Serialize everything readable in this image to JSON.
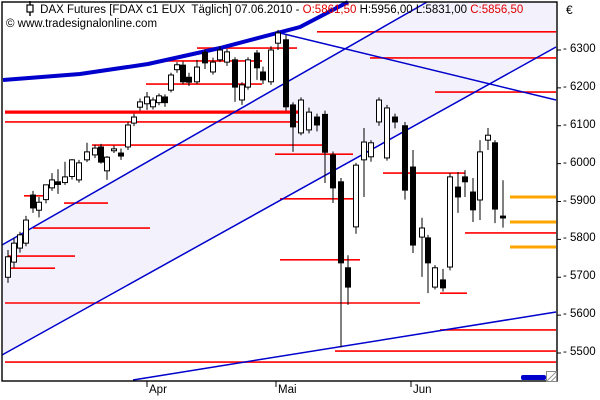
{
  "header": {
    "instrument": "DAX Futures [FDAX c1 EUX  Täglich] 07.06.2010 - ",
    "open_label": "O:5861,50 ",
    "high_label": "H:5956,00 ",
    "low_label": "L:5831,00 ",
    "close_label": "C:5856,50",
    "icon": "candlestick-symbol"
  },
  "watermark": {
    "symbol": "©",
    "text": " www.tradesignalonline.com"
  },
  "axes": {
    "currency_symbol": "€",
    "y_min": 5500,
    "y_max": 6300,
    "y_step": 100,
    "y_ticks": [
      6300,
      6200,
      6100,
      6000,
      5900,
      5800,
      5700,
      5600,
      5500
    ],
    "x_ticks": [
      {
        "label": "Apr",
        "x": 147
      },
      {
        "label": "Mai",
        "x": 276
      },
      {
        "label": "Jun",
        "x": 411
      }
    ]
  },
  "colors": {
    "up_body": "#ffffff",
    "down_body": "#000000",
    "wick": "#000000",
    "level_red": "#ff0000",
    "level_orange": "#ffa500",
    "trend_blue": "#0000cc",
    "channel_fill": "#f3f1fb",
    "ohlc_accent": "#e00000",
    "frame": "#000000",
    "plot_bg": "#ffffff"
  },
  "chart_data": {
    "type": "candlestick",
    "title": "DAX Futures FDAX c1 EUX Daily, 07.06.2010, O 5861.50 H 5956.00 L 5831.00 C 5856.50, prices in EUR",
    "ylim": [
      5500,
      6300
    ],
    "legend": "none",
    "grid": false,
    "candles": [
      [
        8,
        5700,
        5772,
        5685,
        5754
      ],
      [
        14,
        5740,
        5804,
        5725,
        5790
      ],
      [
        20,
        5777,
        5820,
        5765,
        5812
      ],
      [
        26,
        5790,
        5862,
        5782,
        5851
      ],
      [
        33,
        5917,
        5928,
        5870,
        5883
      ],
      [
        39,
        5877,
        5912,
        5858,
        5898
      ],
      [
        46,
        5905,
        5945,
        5895,
        5944
      ],
      [
        52,
        5936,
        5975,
        5928,
        5957
      ],
      [
        58,
        5952,
        5985,
        5920,
        5945
      ],
      [
        65,
        5950,
        6005,
        5944,
        5965
      ],
      [
        72,
        5966,
        6012,
        5958,
        6010
      ],
      [
        79,
        5957,
        6010,
        5950,
        6002
      ],
      [
        87,
        6010,
        6055,
        6004,
        6031
      ],
      [
        95,
        6023,
        6050,
        6015,
        6041
      ],
      [
        101,
        6044,
        6052,
        6000,
        6004
      ],
      [
        107,
        5981,
        6020,
        5957,
        6017
      ],
      [
        114,
        6034,
        6048,
        6028,
        6039
      ],
      [
        121,
        6028,
        6040,
        6010,
        6020
      ],
      [
        128,
        6044,
        6110,
        6036,
        6102
      ],
      [
        134,
        6107,
        6132,
        6099,
        6123
      ],
      [
        140,
        6149,
        6172,
        6140,
        6163
      ],
      [
        147,
        6158,
        6189,
        6142,
        6176
      ],
      [
        153,
        6150,
        6175,
        6143,
        6168
      ],
      [
        159,
        6161,
        6185,
        6154,
        6179
      ],
      [
        165,
        6176,
        6183,
        6150,
        6161
      ],
      [
        171,
        6194,
        6240,
        6188,
        6234
      ],
      [
        177,
        6248,
        6268,
        6240,
        6261
      ],
      [
        183,
        6260,
        6270,
        6210,
        6216
      ],
      [
        189,
        6228,
        6240,
        6205,
        6215
      ],
      [
        197,
        6216,
        6274,
        6210,
        6255
      ],
      [
        205,
        6294,
        6302,
        6250,
        6266
      ],
      [
        213,
        6242,
        6280,
        6235,
        6268
      ],
      [
        220,
        6274,
        6310,
        6268,
        6300
      ],
      [
        227,
        6268,
        6303,
        6258,
        6295
      ],
      [
        235,
        6274,
        6281,
        6163,
        6202
      ],
      [
        242,
        6168,
        6215,
        6155,
        6208
      ],
      [
        248,
        6202,
        6281,
        6195,
        6274
      ],
      [
        257,
        6292,
        6300,
        6221,
        6253
      ],
      [
        263,
        6242,
        6256,
        6210,
        6221
      ],
      [
        271,
        6216,
        6310,
        6208,
        6300
      ],
      [
        278,
        6318,
        6353,
        6300,
        6345
      ],
      [
        286,
        6327,
        6340,
        6140,
        6150
      ],
      [
        293,
        6155,
        6162,
        6031,
        6097
      ],
      [
        301,
        6081,
        6175,
        6075,
        6168
      ],
      [
        309,
        6089,
        6148,
        6080,
        6136
      ],
      [
        317,
        6123,
        6132,
        6085,
        6102
      ],
      [
        325,
        6130,
        6140,
        5949,
        6030
      ],
      [
        333,
        6023,
        6032,
        5896,
        5936
      ],
      [
        341,
        5952,
        5962,
        5515,
        5738
      ],
      [
        348,
        5725,
        5758,
        5627,
        5674
      ],
      [
        356,
        5833,
        6002,
        5815,
        5996
      ],
      [
        364,
        6010,
        6094,
        5912,
        6057
      ],
      [
        371,
        6018,
        6062,
        6005,
        6055
      ],
      [
        379,
        6110,
        6175,
        6100,
        6168
      ],
      [
        387,
        6015,
        6155,
        6008,
        6147
      ],
      [
        395,
        6123,
        6132,
        6093,
        6110
      ],
      [
        405,
        6100,
        6110,
        5905,
        5930
      ],
      [
        413,
        5991,
        6036,
        5764,
        5785
      ],
      [
        422,
        5806,
        5857,
        5701,
        5830
      ],
      [
        428,
        5804,
        5812,
        5658,
        5738
      ],
      [
        435,
        5674,
        5732,
        5668,
        5725
      ],
      [
        443,
        5693,
        5722,
        5662,
        5672
      ],
      [
        450,
        5727,
        5975,
        5718,
        5965
      ],
      [
        458,
        5938,
        5978,
        5870,
        5912
      ],
      [
        465,
        5965,
        5983,
        5912,
        5952
      ],
      [
        473,
        5925,
        5962,
        5846,
        5878
      ],
      [
        480,
        5904,
        6062,
        5851,
        6031
      ],
      [
        488,
        6062,
        6094,
        6036,
        6075
      ],
      [
        495,
        6055,
        6062,
        5843,
        5880
      ],
      [
        503,
        5861.5,
        5956,
        5831,
        5856.5
      ]
    ],
    "support_resistance_red": [
      {
        "price": 6348,
        "x1": 317,
        "x2": 556,
        "thick": false
      },
      {
        "price": 6305,
        "x1": 197,
        "x2": 297,
        "thick": false
      },
      {
        "price": 6279,
        "x1": 370,
        "x2": 556,
        "thick": false
      },
      {
        "price": 6271,
        "x1": 165,
        "x2": 262,
        "thick": false
      },
      {
        "price": 6210,
        "x1": 146,
        "x2": 262,
        "thick": false
      },
      {
        "price": 6189,
        "x1": 435,
        "x2": 556,
        "thick": false
      },
      {
        "price": 6136,
        "x1": 5,
        "x2": 298,
        "thick": true
      },
      {
        "price": 6110,
        "x1": 5,
        "x2": 298,
        "thick": false
      },
      {
        "price": 6049,
        "x1": 92,
        "x2": 325,
        "thick": false
      },
      {
        "price": 6025,
        "x1": 275,
        "x2": 353,
        "thick": false
      },
      {
        "price": 5975,
        "x1": 383,
        "x2": 465,
        "thick": false
      },
      {
        "price": 5915,
        "x1": 24,
        "x2": 48,
        "thick": false
      },
      {
        "price": 5907,
        "x1": 280,
        "x2": 353,
        "thick": false
      },
      {
        "price": 5896,
        "x1": 64,
        "x2": 108,
        "thick": false
      },
      {
        "price": 5830,
        "x1": 33,
        "x2": 150,
        "thick": false
      },
      {
        "price": 5817,
        "x1": 465,
        "x2": 556,
        "thick": false
      },
      {
        "price": 5756,
        "x1": 8,
        "x2": 75,
        "thick": false
      },
      {
        "price": 5746,
        "x1": 280,
        "x2": 360,
        "thick": false
      },
      {
        "price": 5724,
        "x1": 5,
        "x2": 55,
        "thick": false
      },
      {
        "price": 5658,
        "x1": 440,
        "x2": 467,
        "thick": false
      },
      {
        "price": 5632,
        "x1": 5,
        "x2": 420,
        "thick": false
      },
      {
        "price": 5561,
        "x1": 440,
        "x2": 556,
        "thick": false
      },
      {
        "price": 5505,
        "x1": 335,
        "x2": 556,
        "thick": false
      },
      {
        "price": 5476,
        "x1": 5,
        "x2": 556,
        "thick": false
      }
    ],
    "target_levels_orange": [
      {
        "price": 5912,
        "x1": 510,
        "x2": 556
      },
      {
        "price": 5846,
        "x1": 510,
        "x2": 556
      },
      {
        "price": 5780,
        "x1": 510,
        "x2": 556
      }
    ],
    "trendlines": [
      {
        "name": "thick-rising-average",
        "width": 4,
        "points": [
          [
            3,
            80
          ],
          [
            80,
            74
          ],
          [
            148,
            64
          ],
          [
            220,
            48
          ],
          [
            300,
            27
          ],
          [
            348,
            2
          ]
        ]
      },
      {
        "name": "rising-support-upper",
        "width": 1.5,
        "points": [
          [
            2,
            245
          ],
          [
            427,
            2
          ]
        ]
      },
      {
        "name": "rising-support-lower",
        "width": 1.5,
        "points": [
          [
            2,
            355
          ],
          [
            556,
            47
          ]
        ]
      },
      {
        "name": "falling-resistance",
        "width": 1.5,
        "points": [
          [
            280,
            33
          ],
          [
            556,
            100
          ]
        ]
      },
      {
        "name": "shallow-bottom-trend",
        "width": 1.5,
        "points": [
          [
            133,
            380
          ],
          [
            556,
            312
          ]
        ]
      }
    ],
    "channel_fill_polygon": [
      [
        2,
        245
      ],
      [
        427,
        2
      ],
      [
        556,
        2
      ],
      [
        556,
        47
      ],
      [
        2,
        355
      ]
    ]
  }
}
